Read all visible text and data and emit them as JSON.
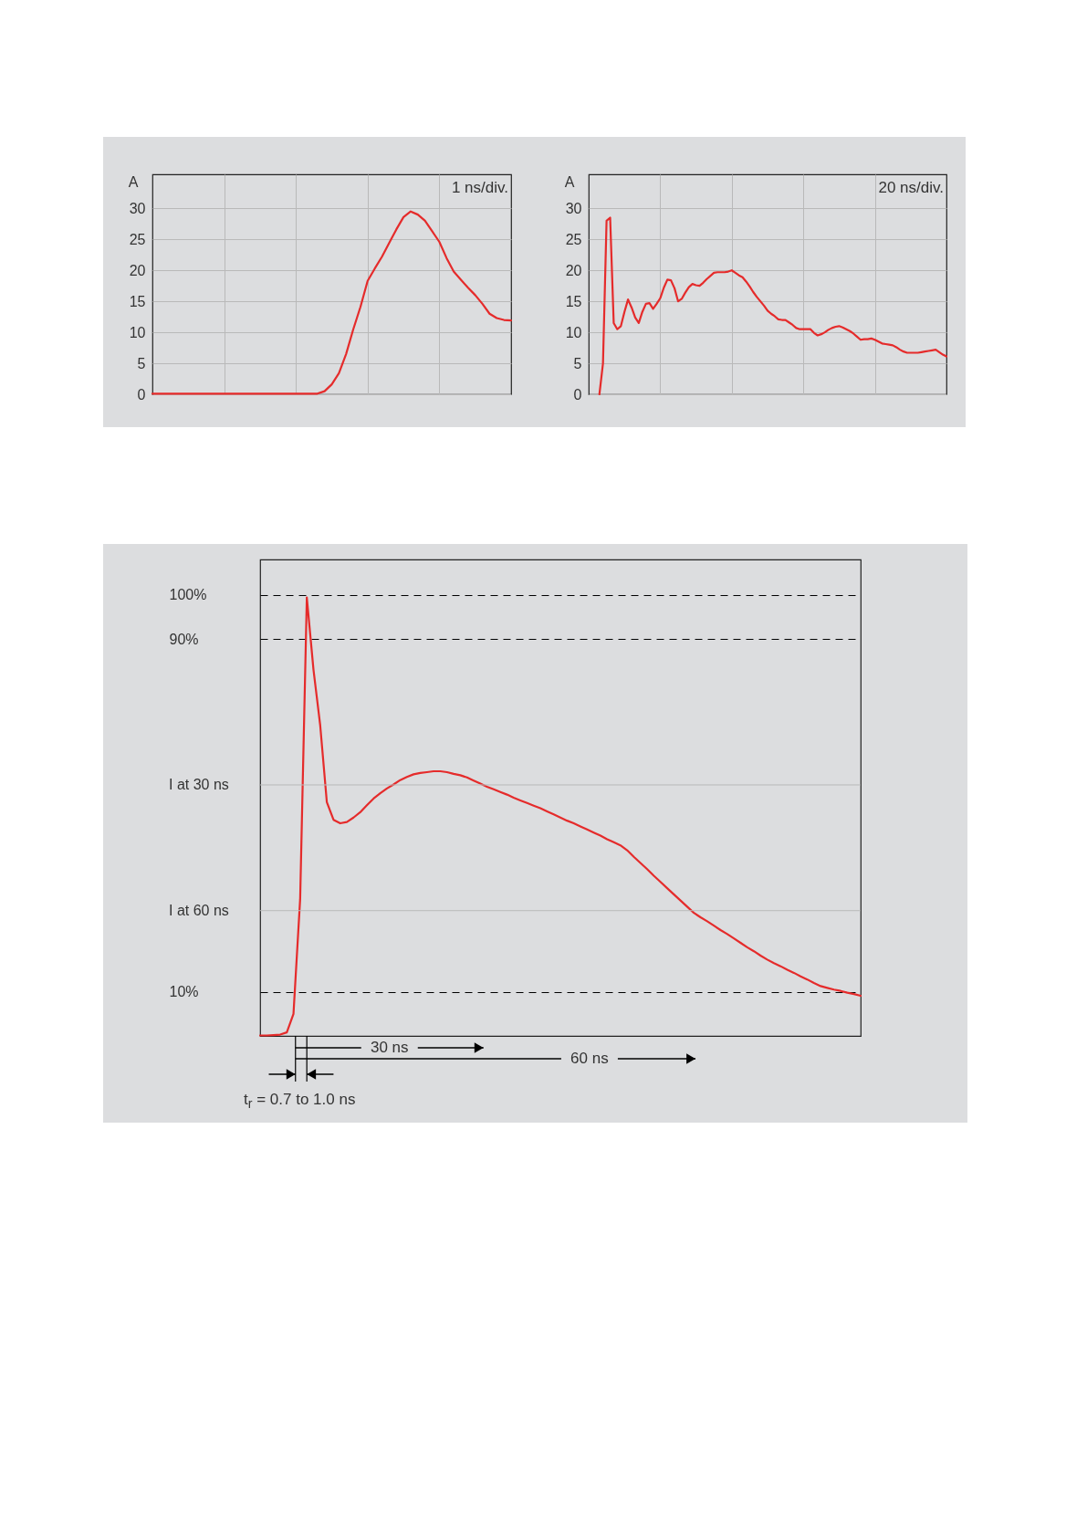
{
  "chart_data": [
    {
      "type": "line",
      "ylabel": "A",
      "annotations": [
        "1 ns/div."
      ],
      "ylim": [
        0,
        35.5
      ],
      "yticks": [
        0,
        5,
        10,
        15,
        20,
        25,
        30
      ],
      "tick_labels": "y",
      "grid": true,
      "categories": [
        null,
        null,
        null,
        null,
        null,
        null,
        null,
        null,
        null,
        null,
        null,
        null,
        null,
        null,
        null,
        null,
        null,
        null,
        null,
        null,
        null,
        null,
        null,
        null,
        null,
        null,
        null,
        null,
        null,
        null,
        null,
        null,
        null,
        null,
        null,
        null,
        null,
        null,
        null,
        null,
        null,
        null,
        null,
        null,
        null,
        null,
        null,
        null,
        null,
        null,
        null
      ],
      "series": [
        {
          "color": "#e52b2b",
          "values": [
            0.1,
            0.1,
            0.1,
            0.1,
            0.1,
            0.1,
            0.1,
            0.1,
            0.1,
            0.1,
            0.1,
            0.1,
            0.1,
            0.1,
            0.1,
            0.1,
            0.1,
            0.1,
            0.1,
            0.1,
            0.1,
            0.1,
            0.1,
            0.1,
            0.5,
            1.6,
            3.4,
            6.5,
            10.5,
            14.1,
            18.3,
            20.3,
            22.2,
            24.4,
            26.6,
            28.6,
            29.5,
            29.0,
            28.0,
            26.3,
            24.6,
            22.0,
            19.8,
            18.5,
            17.2,
            16.0,
            14.6,
            13.0,
            12.3,
            12.0,
            11.9
          ]
        }
      ]
    },
    {
      "type": "line",
      "ylabel": "A",
      "annotations": [
        "20 ns/div."
      ],
      "ylim": [
        0,
        35.5
      ],
      "yticks": [
        0,
        5,
        10,
        15,
        20,
        25,
        30
      ],
      "tick_labels": "y",
      "grid": true,
      "categories": [
        null,
        null,
        null,
        null,
        null,
        null,
        null,
        null,
        null,
        null,
        null,
        null,
        null,
        null,
        null,
        null,
        null,
        null,
        null,
        null,
        null,
        null,
        null,
        null,
        null,
        null,
        null,
        null,
        null,
        null,
        null,
        null,
        null,
        null,
        null,
        null,
        null,
        null,
        null,
        null,
        null,
        null,
        null,
        null,
        null,
        null,
        null,
        null,
        null,
        null,
        null,
        null,
        null,
        null,
        null,
        null,
        null,
        null,
        null,
        null,
        null,
        null,
        null,
        null,
        null,
        null,
        null,
        null,
        null,
        null,
        null,
        null,
        null,
        null,
        null,
        null,
        null,
        null,
        null,
        null,
        null,
        null,
        null,
        null,
        null,
        null,
        null,
        null,
        null,
        null,
        null,
        null,
        null,
        null,
        null,
        null,
        null,
        null,
        null,
        null,
        null
      ],
      "series": [
        {
          "color": "#e52b2b",
          "values": [
            null,
            null,
            null,
            0,
            5,
            28,
            28.5,
            11.5,
            10.5,
            11,
            13.3,
            15.3,
            14,
            12.4,
            11.5,
            13.3,
            14.6,
            14.7,
            13.8,
            14.6,
            15.5,
            17.2,
            18.5,
            18.4,
            17.1,
            15,
            15.4,
            16.4,
            17.3,
            17.8,
            17.6,
            17.5,
            18.0,
            18.6,
            19.1,
            19.6,
            19.7,
            19.7,
            19.7,
            19.8,
            20.0,
            19.6,
            19.2,
            18.9,
            18.2,
            17.4,
            16.5,
            15.7,
            15.0,
            14.3,
            13.5,
            13.0,
            12.6,
            12.1,
            12.0,
            12.0,
            11.6,
            11.2,
            10.7,
            10.5,
            10.5,
            10.5,
            10.5,
            9.9,
            9.5,
            9.7,
            10.0,
            10.4,
            10.7,
            10.9,
            11.0,
            10.8,
            10.5,
            10.2,
            9.8,
            9.3,
            8.8,
            8.9,
            8.9,
            9.0,
            8.8,
            8.5,
            8.2,
            8.1,
            8.0,
            7.9,
            7.6,
            7.2,
            6.9,
            6.7,
            6.7,
            6.7,
            6.7,
            6.8,
            6.9,
            7.0,
            7.1,
            7.2,
            6.8,
            6.4,
            6.1
          ]
        }
      ]
    },
    {
      "type": "line",
      "annotations": [
        "30 ns",
        "60 ns",
        "t$_{r}$ = 0.7 to 1.0 ns"
      ],
      "ylim": [
        0,
        108
      ],
      "yticks": [
        {
          "value": 100,
          "label": "100%"
        },
        {
          "value": 90,
          "label": "90%"
        },
        {
          "value": 10,
          "label": "10%"
        }
      ],
      "tick_labels": "y",
      "grid": "y",
      "ref_lines": [
        {
          "axis": "y",
          "value": 56.9,
          "label": "I at 30 ns",
          "color": "#b9b9b9"
        },
        {
          "axis": "y",
          "value": 28.4,
          "label": "I at 60 ns",
          "color": "#b9b9b9"
        }
      ],
      "categories": [
        null,
        null,
        null,
        null,
        null,
        null,
        null,
        null,
        null,
        null,
        null,
        null,
        null,
        null,
        null,
        null,
        null,
        null,
        null,
        null,
        null,
        null,
        null,
        null,
        null,
        null,
        null,
        null,
        null,
        null,
        null,
        null,
        null,
        null,
        null,
        null,
        null,
        null,
        null,
        null,
        null,
        null,
        null,
        null,
        null,
        null,
        null,
        null,
        null,
        null,
        null,
        null,
        null,
        null,
        null,
        null,
        null,
        null,
        null,
        null,
        null,
        null,
        null,
        null,
        null,
        null,
        null,
        null,
        null,
        null,
        null,
        null,
        null,
        null,
        null,
        null,
        null,
        null,
        null,
        null,
        null,
        null,
        null,
        null,
        null,
        null,
        null,
        null,
        null,
        null,
        null
      ],
      "series": [
        {
          "color": "#e52b2b",
          "values": [
            0.1,
            0.1,
            0.2,
            0.3,
            0.8,
            5,
            31,
            99.4,
            83,
            70.5,
            53,
            49,
            48.2,
            48.5,
            49.5,
            50.7,
            52.3,
            53.8,
            55,
            56.1,
            57,
            58,
            58.7,
            59.3,
            59.6,
            59.8,
            60,
            60,
            59.8,
            59.4,
            59.1,
            58.6,
            57.9,
            57.2,
            56.5,
            55.9,
            55.3,
            54.7,
            54,
            53.4,
            52.8,
            52.2,
            51.6,
            50.9,
            50.2,
            49.5,
            48.8,
            48.2,
            47.5,
            46.8,
            46.1,
            45.4,
            44.6,
            43.9,
            43.2,
            42.1,
            40.6,
            39.2,
            37.8,
            36.3,
            34.9,
            33.5,
            32.1,
            30.7,
            29.3,
            27.9,
            26.9,
            26.0,
            25.0,
            24.0,
            23.1,
            22.1,
            21.1,
            20.1,
            19.2,
            18.2,
            17.3,
            16.5,
            15.8,
            15.0,
            14.3,
            13.5,
            12.8,
            12.0,
            11.3,
            10.9,
            10.5,
            10.2,
            9.8,
            9.5,
            9.1
          ]
        }
      ]
    }
  ]
}
